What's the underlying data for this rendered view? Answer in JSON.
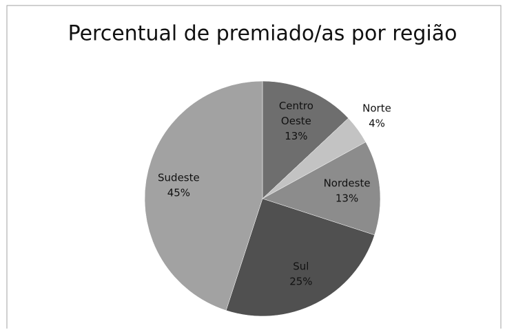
{
  "chart_data": {
    "type": "pie",
    "title": "Percentual de premiado/as por região",
    "categories": [
      "Centro Oeste",
      "Norte",
      "Nordeste",
      "Sul",
      "Sudeste"
    ],
    "values": [
      13,
      4,
      13,
      25,
      45
    ],
    "value_labels": [
      "13%",
      "4%",
      "13%",
      "25%",
      "45%"
    ],
    "colors": [
      "#6e6e6e",
      "#c3c3c3",
      "#8c8c8c",
      "#505050",
      "#a2a2a2"
    ]
  }
}
